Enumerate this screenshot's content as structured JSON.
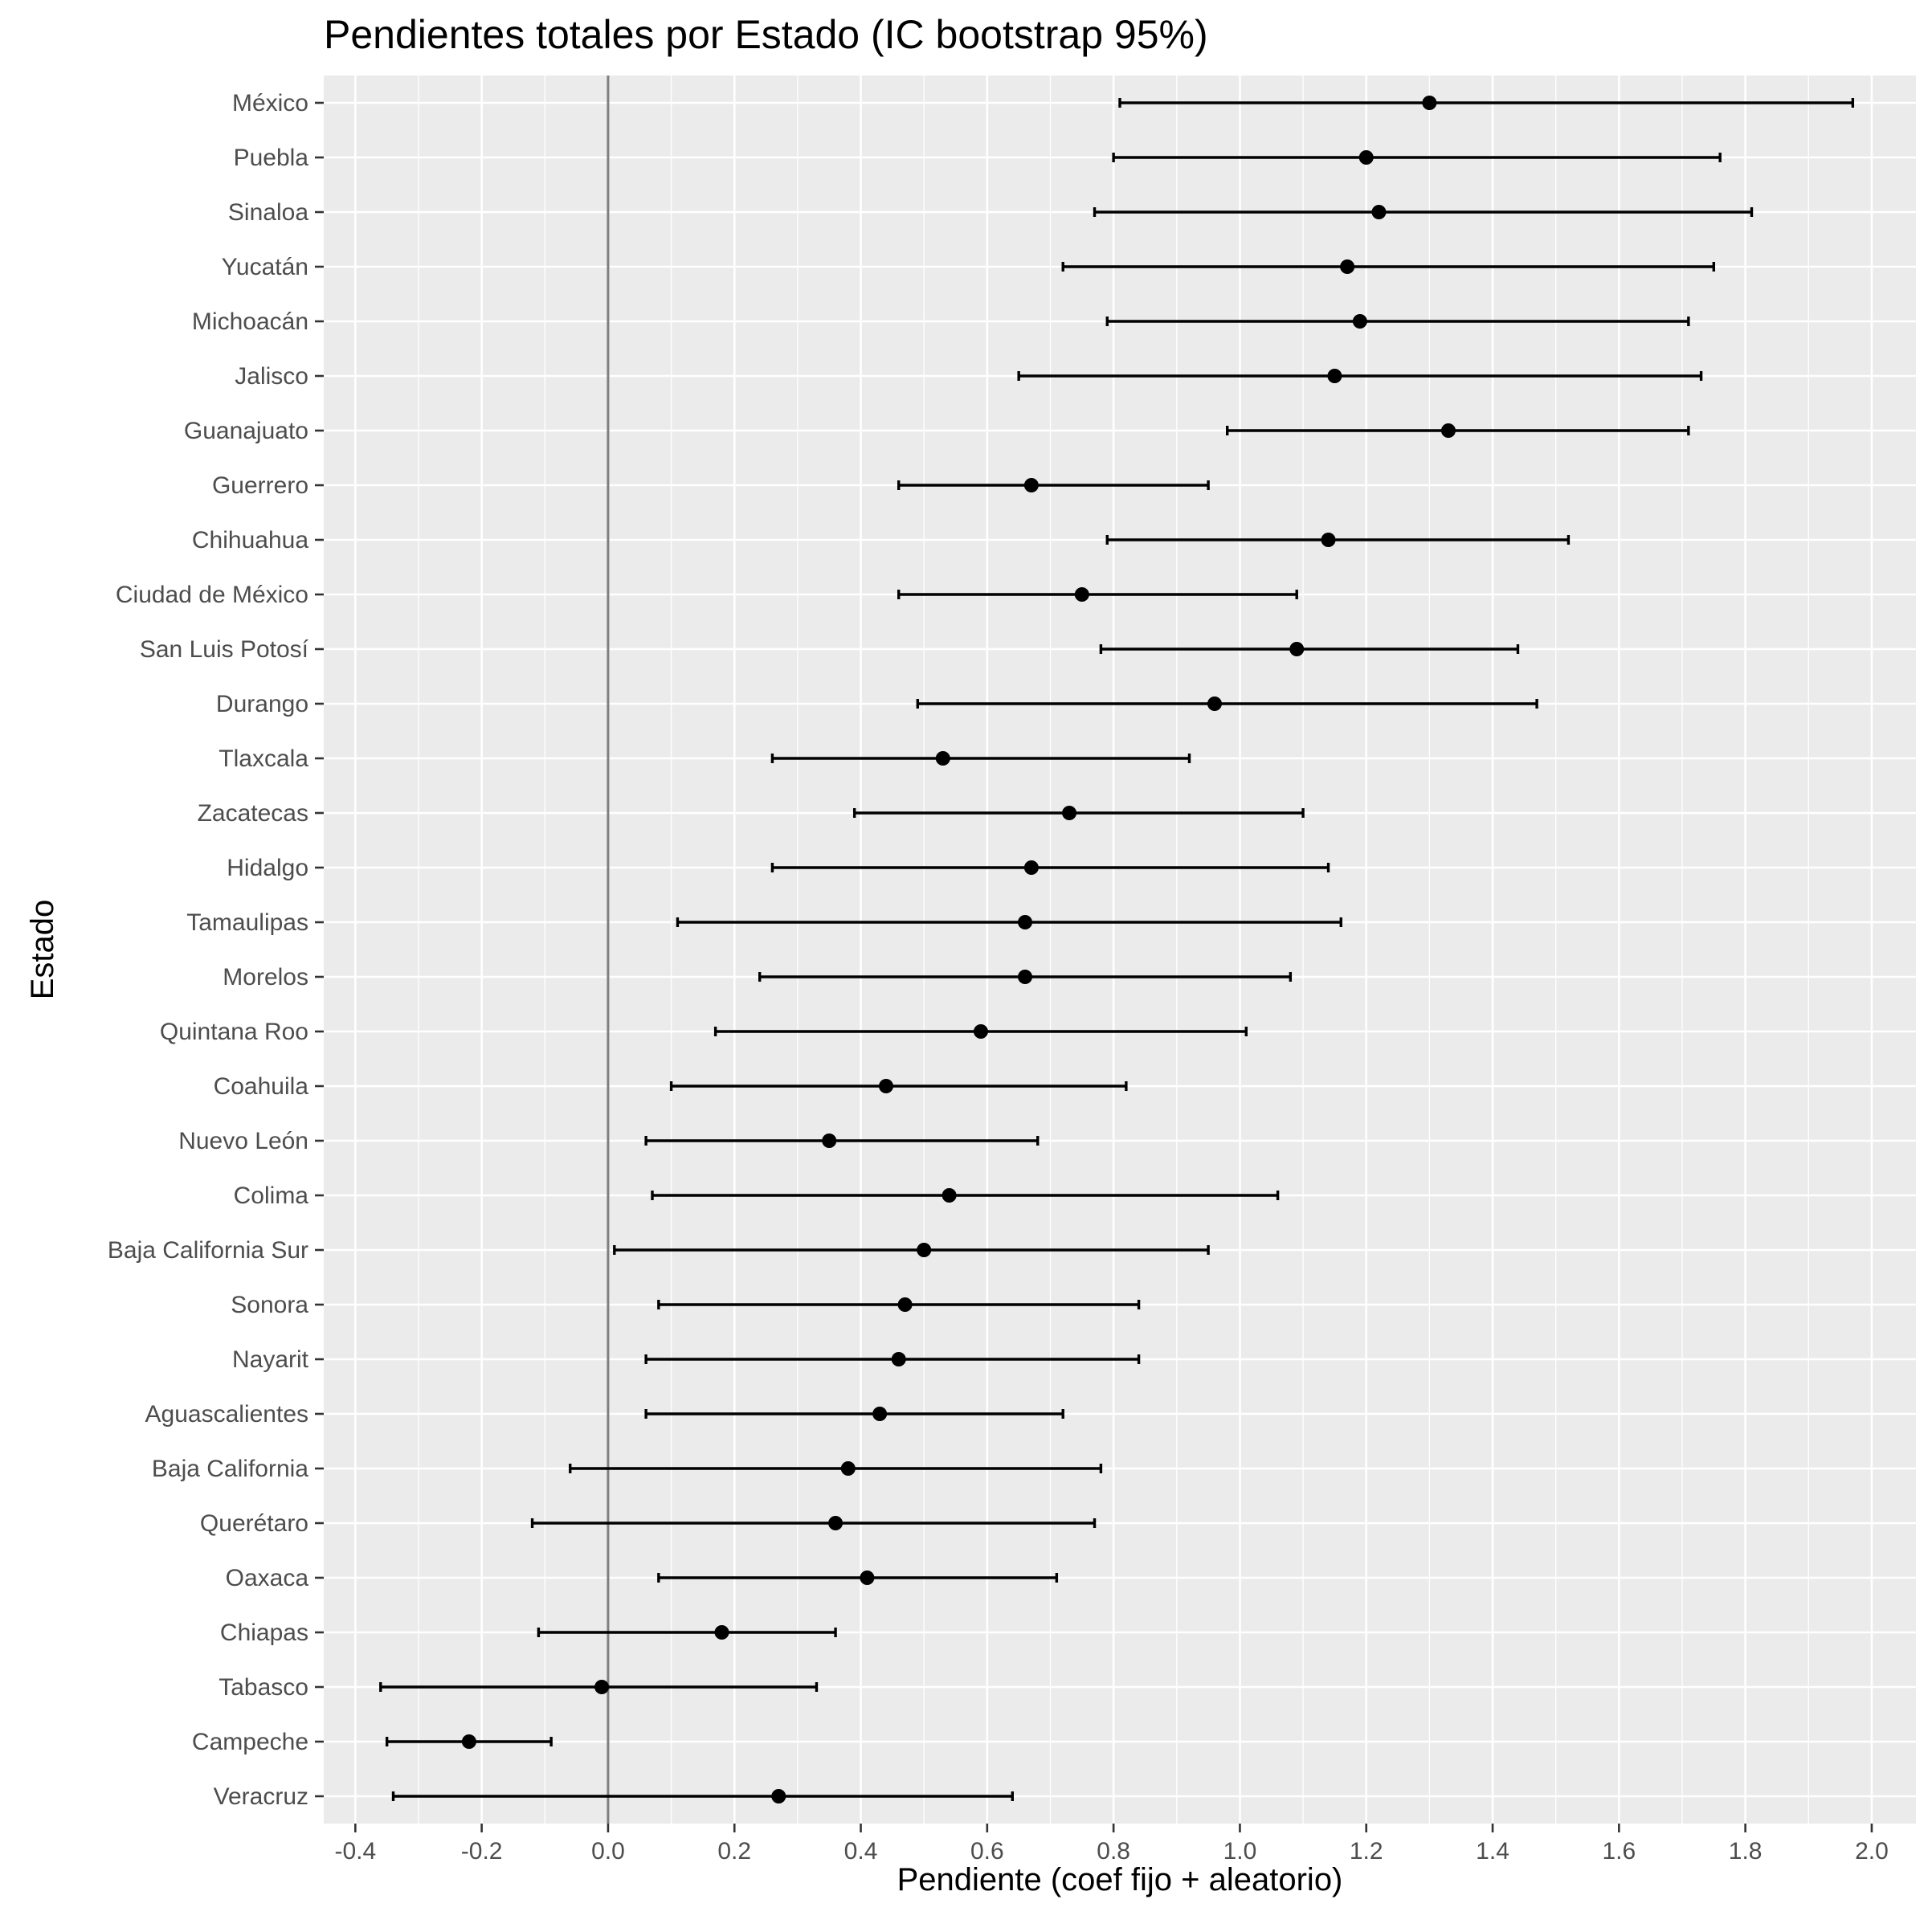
{
  "chart_data": {
    "type": "scatter",
    "title": "Pendientes totales por Estado (IC bootstrap 95%)",
    "xlabel": "Pendiente (coef fijo + aleatorio)",
    "ylabel": "Estado",
    "xlim": [
      -0.45,
      2.07
    ],
    "x_ticks": [
      "-0.4",
      "-0.2",
      "0.0",
      "0.2",
      "0.4",
      "0.6",
      "0.8",
      "1.0",
      "1.2",
      "1.4",
      "1.6",
      "1.8",
      "2.0"
    ],
    "reference_line_x": 0,
    "grid": true,
    "colors": {
      "panel": "#ebebeb",
      "grid": "#ffffff",
      "points": "#000000",
      "reference": "#7f7f7f"
    },
    "series": [
      {
        "estado": "México",
        "estimate": 1.3,
        "lower": 0.81,
        "upper": 1.97
      },
      {
        "estado": "Puebla",
        "estimate": 1.2,
        "lower": 0.8,
        "upper": 1.76
      },
      {
        "estado": "Sinaloa",
        "estimate": 1.22,
        "lower": 0.77,
        "upper": 1.81
      },
      {
        "estado": "Yucatán",
        "estimate": 1.17,
        "lower": 0.72,
        "upper": 1.75
      },
      {
        "estado": "Michoacán",
        "estimate": 1.19,
        "lower": 0.79,
        "upper": 1.71
      },
      {
        "estado": "Jalisco",
        "estimate": 1.15,
        "lower": 0.65,
        "upper": 1.73
      },
      {
        "estado": "Guanajuato",
        "estimate": 1.33,
        "lower": 0.98,
        "upper": 1.71
      },
      {
        "estado": "Guerrero",
        "estimate": 0.67,
        "lower": 0.46,
        "upper": 0.95
      },
      {
        "estado": "Chihuahua",
        "estimate": 1.14,
        "lower": 0.79,
        "upper": 1.52
      },
      {
        "estado": "Ciudad de México",
        "estimate": 0.75,
        "lower": 0.46,
        "upper": 1.09
      },
      {
        "estado": "San Luis Potosí",
        "estimate": 1.09,
        "lower": 0.78,
        "upper": 1.44
      },
      {
        "estado": "Durango",
        "estimate": 0.96,
        "lower": 0.49,
        "upper": 1.47
      },
      {
        "estado": "Tlaxcala",
        "estimate": 0.53,
        "lower": 0.26,
        "upper": 0.92
      },
      {
        "estado": "Zacatecas",
        "estimate": 0.73,
        "lower": 0.39,
        "upper": 1.1
      },
      {
        "estado": "Hidalgo",
        "estimate": 0.67,
        "lower": 0.26,
        "upper": 1.14
      },
      {
        "estado": "Tamaulipas",
        "estimate": 0.66,
        "lower": 0.11,
        "upper": 1.16
      },
      {
        "estado": "Morelos",
        "estimate": 0.66,
        "lower": 0.24,
        "upper": 1.08
      },
      {
        "estado": "Quintana Roo",
        "estimate": 0.59,
        "lower": 0.17,
        "upper": 1.01
      },
      {
        "estado": "Coahuila",
        "estimate": 0.44,
        "lower": 0.1,
        "upper": 0.82
      },
      {
        "estado": "Nuevo León",
        "estimate": 0.35,
        "lower": 0.06,
        "upper": 0.68
      },
      {
        "estado": "Colima",
        "estimate": 0.54,
        "lower": 0.07,
        "upper": 1.06
      },
      {
        "estado": "Baja California Sur",
        "estimate": 0.5,
        "lower": 0.01,
        "upper": 0.95
      },
      {
        "estado": "Sonora",
        "estimate": 0.47,
        "lower": 0.08,
        "upper": 0.84
      },
      {
        "estado": "Nayarit",
        "estimate": 0.46,
        "lower": 0.06,
        "upper": 0.84
      },
      {
        "estado": "Aguascalientes",
        "estimate": 0.43,
        "lower": 0.06,
        "upper": 0.72
      },
      {
        "estado": "Baja California",
        "estimate": 0.38,
        "lower": -0.06,
        "upper": 0.78
      },
      {
        "estado": "Querétaro",
        "estimate": 0.36,
        "lower": -0.12,
        "upper": 0.77
      },
      {
        "estado": "Oaxaca",
        "estimate": 0.41,
        "lower": 0.08,
        "upper": 0.71
      },
      {
        "estado": "Chiapas",
        "estimate": 0.18,
        "lower": -0.11,
        "upper": 0.36
      },
      {
        "estado": "Tabasco",
        "estimate": -0.01,
        "lower": -0.36,
        "upper": 0.33
      },
      {
        "estado": "Campeche",
        "estimate": -0.22,
        "lower": -0.35,
        "upper": -0.09
      },
      {
        "estado": "Veracruz",
        "estimate": 0.27,
        "lower": -0.34,
        "upper": 0.64
      }
    ]
  }
}
